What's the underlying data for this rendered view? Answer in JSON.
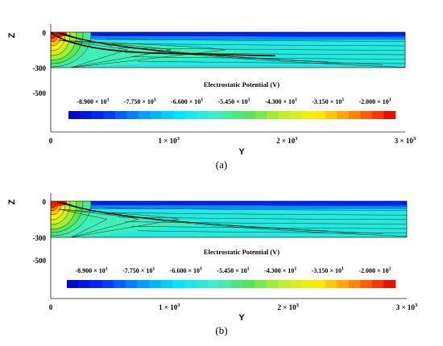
{
  "chart_data": [
    {
      "type": "heatmap",
      "panel_label": "(a)",
      "xlabel": "Y",
      "ylabel": "Z",
      "x_ticks": [
        {
          "value": 0,
          "label": "0"
        },
        {
          "value": 1000,
          "label": "1 × 10",
          "exp": "3"
        },
        {
          "value": 2000,
          "label": "2 × 10",
          "exp": "3"
        },
        {
          "value": 3000,
          "label": "3 × 10",
          "exp": "3"
        }
      ],
      "y_ticks": [
        {
          "value": 0,
          "label": "0"
        },
        {
          "value": -300,
          "label": "-300"
        },
        {
          "value": -500,
          "label": "-500"
        }
      ],
      "xlim": [
        0,
        3000
      ],
      "domain": {
        "y_range": [
          0,
          3000
        ],
        "z_range": [
          -300,
          0
        ]
      },
      "colorbar": {
        "title": "Electrostatic Potential (V)",
        "range": [
          -95,
          -15
        ],
        "ticks": [
          {
            "value": -89.0,
            "label": "-8.900 × 10",
            "exp": "1"
          },
          {
            "value": -77.5,
            "label": "-7.750 × 10",
            "exp": "1"
          },
          {
            "value": -66.0,
            "label": "-6.600 × 10",
            "exp": "1"
          },
          {
            "value": -54.5,
            "label": "-5.450 × 10",
            "exp": "1"
          },
          {
            "value": -43.0,
            "label": "-4.300 × 10",
            "exp": "1"
          },
          {
            "value": -31.5,
            "label": "-3.150 × 10",
            "exp": "1"
          },
          {
            "value": -20.0,
            "label": "-2.000 × 10",
            "exp": "1"
          }
        ]
      },
      "feature_line": {
        "y": [
          0,
          1000,
          1900
        ],
        "z": [
          0,
          -180,
          -200
        ]
      },
      "background_level": -63,
      "plume_extent": 1850
    },
    {
      "type": "heatmap",
      "panel_label": "(b)",
      "xlabel": "Y",
      "ylabel": "Z",
      "x_ticks": [
        {
          "value": 0,
          "label": "0"
        },
        {
          "value": 1000,
          "label": "1 × 10",
          "exp": "3"
        },
        {
          "value": 2000,
          "label": "2 × 10",
          "exp": "3"
        },
        {
          "value": 3000,
          "label": "3 × 10",
          "exp": "3"
        }
      ],
      "y_ticks": [
        {
          "value": 0,
          "label": "0"
        },
        {
          "value": -300,
          "label": "-300"
        },
        {
          "value": -500,
          "label": "-500"
        }
      ],
      "xlim": [
        0,
        3000
      ],
      "domain": {
        "y_range": [
          0,
          3000
        ],
        "z_range": [
          -300,
          0
        ]
      },
      "colorbar": {
        "title": "Electrostatic Potential (V)",
        "range": [
          -95,
          -15
        ],
        "ticks": [
          {
            "value": -89.0,
            "label": "-8.900 × 10",
            "exp": "1"
          },
          {
            "value": -77.5,
            "label": "-7.750 × 10",
            "exp": "1"
          },
          {
            "value": -66.0,
            "label": "-6.600 × 10",
            "exp": "1"
          },
          {
            "value": -54.5,
            "label": "-5.450 × 10",
            "exp": "1"
          },
          {
            "value": -43.0,
            "label": "-4.300 × 10",
            "exp": "1"
          },
          {
            "value": -31.5,
            "label": "-3.150 × 10",
            "exp": "1"
          },
          {
            "value": -20.0,
            "label": "-2.000 × 10",
            "exp": "1"
          }
        ]
      },
      "feature_line": null,
      "background_level": -63,
      "plume_extent": 1350
    }
  ]
}
